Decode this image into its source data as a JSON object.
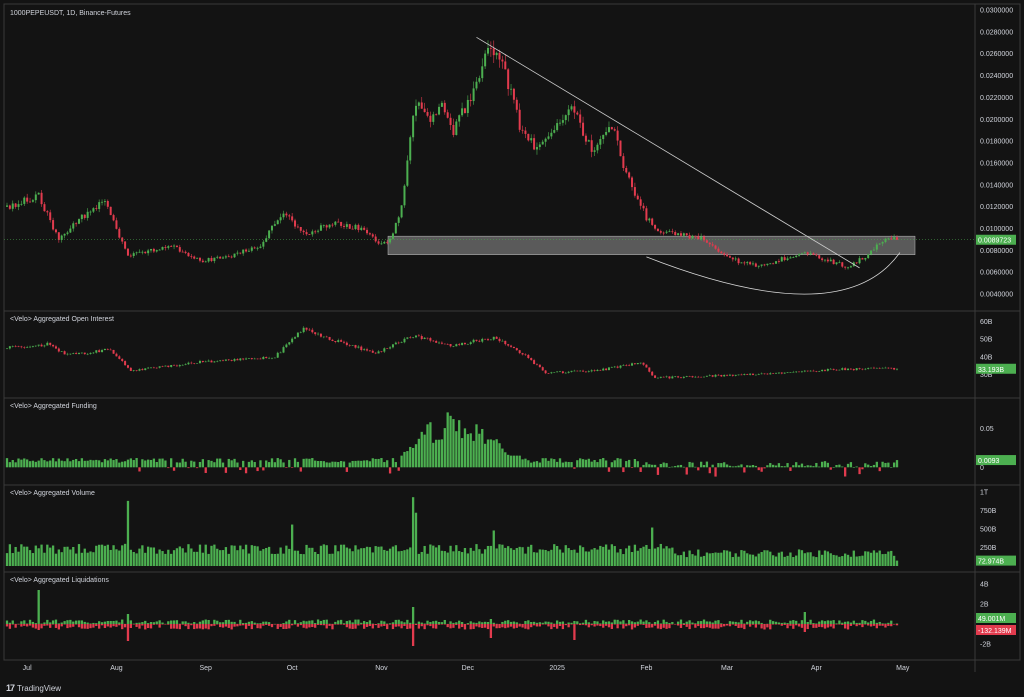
{
  "chart_data": [
    {
      "type": "candlestick",
      "title": "1000PEPEUSDT, 1D, Binance-Futures",
      "ylim": [
        0.003,
        0.03
      ],
      "yticks": [
        "0.0300000",
        "0.0280000",
        "0.0260000",
        "0.0240000",
        "0.0220000",
        "0.0200000",
        "0.0180000",
        "0.0160000",
        "0.0140000",
        "0.0120000",
        "0.0100000",
        "0.0080000",
        "0.0060000",
        "0.0040000"
      ],
      "last_value": "0.0089723",
      "x_labels": [
        "Jul",
        "Aug",
        "Sep",
        "Oct",
        "Nov",
        "Dec",
        "2025",
        "Feb",
        "Mar",
        "Apr",
        "May"
      ],
      "anchors": [
        [
          "2024-06-24",
          0.012
        ],
        [
          "2024-07-05",
          0.013
        ],
        [
          "2024-07-12",
          0.009
        ],
        [
          "2024-07-20",
          0.011
        ],
        [
          "2024-07-28",
          0.0125
        ],
        [
          "2024-08-05",
          0.0075
        ],
        [
          "2024-08-20",
          0.0085
        ],
        [
          "2024-08-30",
          0.007
        ],
        [
          "2024-09-10",
          0.0075
        ],
        [
          "2024-09-20",
          0.0085
        ],
        [
          "2024-09-28",
          0.0115
        ],
        [
          "2024-10-05",
          0.0095
        ],
        [
          "2024-10-15",
          0.0105
        ],
        [
          "2024-10-25",
          0.01
        ],
        [
          "2024-11-01",
          0.0085
        ],
        [
          "2024-11-04",
          0.009
        ],
        [
          "2024-11-08",
          0.012
        ],
        [
          "2024-11-12",
          0.02
        ],
        [
          "2024-11-14",
          0.022
        ],
        [
          "2024-11-18",
          0.02
        ],
        [
          "2024-11-22",
          0.021
        ],
        [
          "2024-11-26",
          0.019
        ],
        [
          "2024-12-02",
          0.022
        ],
        [
          "2024-12-09",
          0.027
        ],
        [
          "2024-12-13",
          0.025
        ],
        [
          "2024-12-19",
          0.0195
        ],
        [
          "2024-12-24",
          0.0175
        ],
        [
          "2024-12-31",
          0.019
        ],
        [
          "2025-01-06",
          0.0215
        ],
        [
          "2025-01-13",
          0.017
        ],
        [
          "2025-01-20",
          0.0195
        ],
        [
          "2025-01-25",
          0.015
        ],
        [
          "2025-02-01",
          0.011
        ],
        [
          "2025-02-04",
          0.01
        ],
        [
          "2025-02-10",
          0.0095
        ],
        [
          "2025-02-20",
          0.0092
        ],
        [
          "2025-02-26",
          0.008
        ],
        [
          "2025-03-05",
          0.007
        ],
        [
          "2025-03-12",
          0.0065
        ],
        [
          "2025-03-20",
          0.0072
        ],
        [
          "2025-03-28",
          0.0078
        ],
        [
          "2025-04-06",
          0.007
        ],
        [
          "2025-04-12",
          0.0065
        ],
        [
          "2025-04-20",
          0.0078
        ],
        [
          "2025-04-25",
          0.0092
        ],
        [
          "2025-04-29",
          0.0089723
        ]
      ],
      "annotations": {
        "resistance_zone": [
          0.0076,
          0.0093
        ],
        "trendline": [
          [
            "2024-12-04",
            0.0275
          ],
          [
            "2025-04-16",
            0.0064
          ]
        ],
        "arc": [
          [
            "2025-02-01",
            0.0074
          ],
          [
            "2025-03-29",
            0.004
          ],
          [
            "2025-04-30",
            0.0078
          ]
        ]
      },
      "colors": {
        "up": "#4caf50",
        "down": "#e23b4e",
        "background": "#131313",
        "zone": "#8a8a8a"
      }
    },
    {
      "type": "candlestick",
      "title": "<Velo> Aggregated Open Interest",
      "ylim": [
        20,
        62
      ],
      "yticks": [
        "60B",
        "50B",
        "40B",
        "30B"
      ],
      "last_value": "33.193B",
      "anchors": [
        [
          "2024-06-24",
          45
        ],
        [
          "2024-07-08",
          47
        ],
        [
          "2024-07-15",
          41
        ],
        [
          "2024-07-30",
          44
        ],
        [
          "2024-08-06",
          32
        ],
        [
          "2024-08-30",
          37
        ],
        [
          "2024-09-25",
          40
        ],
        [
          "2024-10-05",
          56
        ],
        [
          "2024-10-18",
          48
        ],
        [
          "2024-10-30",
          42
        ],
        [
          "2024-11-05",
          47
        ],
        [
          "2024-11-12",
          52
        ],
        [
          "2024-11-25",
          46
        ],
        [
          "2024-12-10",
          51
        ],
        [
          "2024-12-20",
          42
        ],
        [
          "2024-12-28",
          31
        ],
        [
          "2025-01-15",
          32
        ],
        [
          "2025-01-30",
          37
        ],
        [
          "2025-02-04",
          28
        ],
        [
          "2025-03-10",
          30
        ],
        [
          "2025-04-10",
          33
        ],
        [
          "2025-04-29",
          33.193
        ]
      ]
    },
    {
      "type": "bar",
      "title": "<Velo> Aggregated Funding",
      "ylim": [
        -0.015,
        0.08
      ],
      "yticks": [
        "0.05",
        "0"
      ],
      "last_value": "0.0093"
    },
    {
      "type": "bar",
      "title": "<Velo> Aggregated Volume",
      "ylim": [
        0,
        1000
      ],
      "yticks": [
        "1T",
        "750B",
        "500B",
        "250B"
      ],
      "last_value": "72.974B"
    },
    {
      "type": "bar",
      "title": "<Velo> Aggregated Liquidations",
      "ylim": [
        -3,
        4.5
      ],
      "yticks": [
        "4B",
        "2B",
        "-2B"
      ],
      "last_value": "49.001M",
      "last_value_2": "-132.139M"
    }
  ],
  "footer": {
    "brand": "TradingView"
  }
}
